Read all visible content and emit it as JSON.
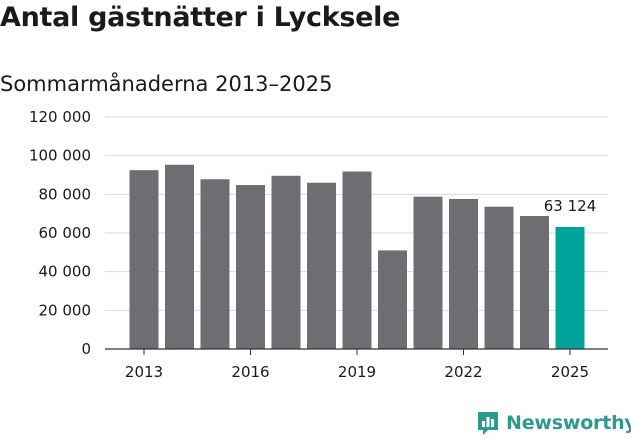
{
  "title": "Antal gästnätter i Lycksele",
  "subtitle": "Sommarmånaderna 2013–2025",
  "brand": {
    "name": "Newsworthy",
    "color": "#2e9a8e",
    "icon": "newsworthy-logo-icon"
  },
  "colors": {
    "bar": "#6e6d72",
    "highlight": "#00a39a",
    "grid": "#d9d9d9",
    "axis": "#333333"
  },
  "chart_data": {
    "type": "bar",
    "categories": [
      "2013",
      "2014",
      "2015",
      "2016",
      "2017",
      "2018",
      "2019",
      "2020",
      "2021",
      "2022",
      "2023",
      "2024",
      "2025"
    ],
    "values": [
      92500,
      95300,
      87800,
      84800,
      89600,
      86000,
      91800,
      51000,
      78800,
      77600,
      73600,
      68800,
      63124
    ],
    "highlight_index": 12,
    "data_labels": [
      {
        "index": 12,
        "text": "63 124"
      }
    ],
    "x_tick_labels": [
      "2013",
      "2016",
      "2019",
      "2022",
      "2025"
    ],
    "y_ticks": [
      0,
      20000,
      40000,
      60000,
      80000,
      100000,
      120000
    ],
    "y_tick_labels": [
      "0",
      "20 000",
      "40 000",
      "60 000",
      "80 000",
      "100 000",
      "120 000"
    ],
    "ylim": [
      0,
      120000
    ],
    "grid": true,
    "legend": "none"
  }
}
